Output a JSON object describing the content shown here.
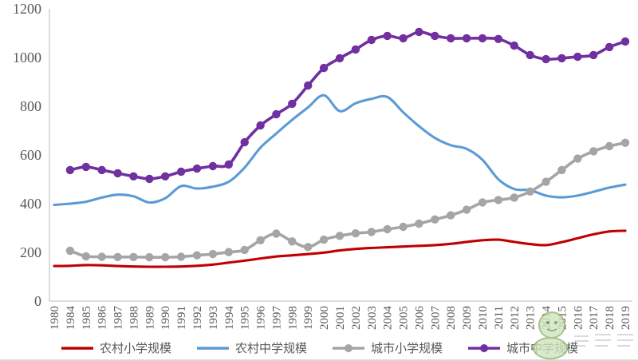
{
  "chart_data": {
    "type": "line",
    "title": "",
    "xlabel": "",
    "ylabel": "",
    "grid": false,
    "legend_position": "bottom",
    "x_label_rotation": 90,
    "x_labels": [
      "1980",
      "1984",
      "1985",
      "1986",
      "1987",
      "1988",
      "1989",
      "1990",
      "1991",
      "1992",
      "1993",
      "1994",
      "1995",
      "1996",
      "1997",
      "1998",
      "1999",
      "2000",
      "2001",
      "2002",
      "2003",
      "2004",
      "2005",
      "2006",
      "2007",
      "2008",
      "2009",
      "2010",
      "2011",
      "2012",
      "2013",
      "2014",
      "2015",
      "2016",
      "2017",
      "2018",
      "2019"
    ],
    "y_axis": {
      "min": 0,
      "max": 1200,
      "step": 200,
      "tick_labels": [
        "0",
        "200",
        "400",
        "600",
        "800",
        "1000",
        "1200"
      ]
    },
    "series": [
      {
        "key": "rural-primary-school-scale",
        "name": "农村小学规模",
        "color": "#C00000",
        "marker": false,
        "values": [
          144,
          145,
          148,
          147,
          144,
          142,
          141,
          141,
          142,
          145,
          150,
          158,
          166,
          175,
          183,
          188,
          193,
          199,
          208,
          214,
          218,
          221,
          224,
          227,
          230,
          235,
          243,
          250,
          252,
          243,
          234,
          230,
          242,
          258,
          274,
          286,
          289
        ]
      },
      {
        "key": "rural-middle-school-scale",
        "name": "农村中学规模",
        "color": "#5B9BD5",
        "marker": false,
        "values": [
          395,
          400,
          408,
          425,
          437,
          430,
          405,
          422,
          472,
          462,
          470,
          490,
          548,
          630,
          688,
          744,
          795,
          845,
          780,
          812,
          830,
          838,
          775,
          718,
          670,
          640,
          625,
          580,
          500,
          460,
          455,
          433,
          426,
          433,
          449,
          466,
          478
        ]
      },
      {
        "key": "urban-primary-school-scale",
        "name": "城市小学规模",
        "color": "#A5A5A5",
        "marker": true,
        "values": [
          null,
          207,
          184,
          182,
          181,
          181,
          180,
          180,
          182,
          188,
          193,
          201,
          210,
          250,
          277,
          245,
          222,
          252,
          268,
          278,
          284,
          295,
          305,
          318,
          335,
          352,
          375,
          405,
          415,
          425,
          450,
          490,
          538,
          585,
          615,
          636,
          650
        ]
      },
      {
        "key": "urban-middle-school-scale",
        "name": "城市中学规模",
        "color": "#7030A0",
        "marker": true,
        "values": [
          null,
          538,
          551,
          538,
          525,
          512,
          502,
          512,
          531,
          544,
          554,
          561,
          652,
          721,
          767,
          810,
          885,
          957,
          997,
          1033,
          1072,
          1089,
          1079,
          1105,
          1089,
          1079,
          1079,
          1079,
          1076,
          1049,
          1010,
          993,
          997,
          1003,
          1010,
          1043,
          1066
        ]
      }
    ]
  },
  "styles": {
    "background": "#FFFFFF",
    "axis_color": "#C9C9C9",
    "tick_label_color": "#595959",
    "legend_text_color": "#595959",
    "watermark_green_fill": "#CFE6BD",
    "watermark_green_stroke": "#8FB573"
  },
  "watermark": {
    "icon": "mascot-watermark"
  }
}
